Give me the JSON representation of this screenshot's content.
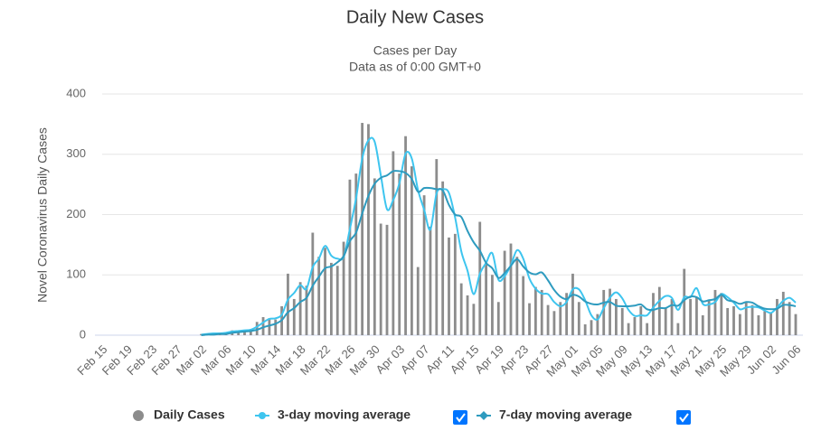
{
  "chart_data": {
    "type": "bar",
    "title": "Daily New Cases",
    "subtitle": [
      "Cases per Day",
      "Data as of 0:00 GMT+0"
    ],
    "y_label": "Novel Coronavirus Daily Cases",
    "categories": [
      "Feb 15",
      null,
      null,
      null,
      "Feb 19",
      null,
      null,
      null,
      "Feb 23",
      null,
      null,
      null,
      "Feb 27",
      null,
      null,
      null,
      "Mar 02",
      null,
      null,
      null,
      "Mar 06",
      null,
      null,
      null,
      "Mar 10",
      null,
      null,
      null,
      "Mar 14",
      null,
      null,
      null,
      "Mar 18",
      null,
      null,
      null,
      "Mar 22",
      null,
      null,
      null,
      "Mar 26",
      null,
      null,
      null,
      "Mar 30",
      null,
      null,
      null,
      "Apr 03",
      null,
      null,
      null,
      "Apr 07",
      null,
      null,
      null,
      "Apr 11",
      null,
      null,
      null,
      "Apr 15",
      null,
      null,
      null,
      "Apr 19",
      null,
      null,
      null,
      "Apr 23",
      null,
      null,
      null,
      "Apr 27",
      null,
      null,
      null,
      "May 01",
      null,
      null,
      null,
      "May 05",
      null,
      null,
      null,
      "May 09",
      null,
      null,
      null,
      "May 13",
      null,
      null,
      null,
      "May 17",
      null,
      null,
      null,
      "May 21",
      null,
      null,
      null,
      "May 25",
      null,
      null,
      null,
      "May 29",
      null,
      null,
      null,
      "Jun 02",
      null,
      null,
      null,
      "Jun 06"
    ],
    "series": [
      {
        "name": "Daily Cases",
        "type": "bar",
        "color": "#8c8c8c",
        "values": [
          0,
          0,
          0,
          0,
          0,
          0,
          0,
          0,
          0,
          0,
          0,
          0,
          0,
          0,
          0,
          0,
          2,
          3,
          3,
          4,
          5,
          8,
          8,
          9,
          10,
          22,
          30,
          28,
          26,
          48,
          102,
          60,
          88,
          82,
          170,
          130,
          145,
          120,
          115,
          155,
          258,
          268,
          352,
          350,
          260,
          185,
          183,
          305,
          268,
          330,
          280,
          113,
          232,
          180,
          292,
          255,
          162,
          168,
          86,
          66,
          52,
          188,
          120,
          100,
          55,
          140,
          152,
          130,
          98,
          53,
          80,
          75,
          50,
          40,
          55,
          70,
          102,
          55,
          18,
          25,
          35,
          75,
          77,
          60,
          45,
          20,
          30,
          48,
          20,
          70,
          80,
          45,
          60,
          20,
          110,
          60,
          63,
          33,
          58,
          75,
          70,
          45,
          48,
          35,
          55,
          50,
          33,
          40,
          38,
          60,
          72,
          55,
          35
        ]
      },
      {
        "name": "3-day moving average",
        "type": "line",
        "color": "#3ec5ef",
        "values": [
          null,
          null,
          null,
          null,
          null,
          null,
          null,
          null,
          null,
          null,
          null,
          null,
          null,
          null,
          null,
          null,
          1,
          2,
          3,
          3,
          4,
          6,
          7,
          8,
          9,
          14,
          21,
          27,
          28,
          34,
          59,
          70,
          83,
          77,
          113,
          127,
          148,
          132,
          127,
          130,
          176,
          227,
          293,
          323,
          321,
          265,
          209,
          224,
          252,
          301,
          293,
          241,
          208,
          175,
          235,
          242,
          236,
          195,
          139,
          107,
          68,
          102,
          120,
          136,
          92,
          98,
          116,
          141,
          127,
          94,
          77,
          69,
          68,
          55,
          48,
          55,
          76,
          76,
          58,
          33,
          26,
          45,
          62,
          71,
          61,
          42,
          32,
          33,
          33,
          46,
          57,
          65,
          62,
          42,
          63,
          63,
          78,
          52,
          51,
          55,
          68,
          63,
          54,
          43,
          46,
          47,
          46,
          41,
          37,
          46,
          57,
          62,
          54
        ]
      },
      {
        "name": "7-day moving average",
        "type": "line",
        "color": "#2e9bbf",
        "values": [
          null,
          null,
          null,
          null,
          null,
          null,
          null,
          null,
          null,
          null,
          null,
          null,
          null,
          null,
          null,
          null,
          0,
          1,
          1,
          2,
          2,
          4,
          5,
          6,
          7,
          9,
          13,
          16,
          19,
          25,
          38,
          45,
          55,
          62,
          82,
          97,
          111,
          114,
          121,
          131,
          156,
          170,
          202,
          231,
          251,
          261,
          265,
          272,
          272,
          269,
          259,
          238,
          244,
          244,
          242,
          240,
          216,
          200,
          196,
          173,
          154,
          140,
          120,
          111,
          95,
          103,
          115,
          126,
          114,
          104,
          101,
          104,
          91,
          75,
          64,
          60,
          67,
          64,
          56,
          52,
          51,
          54,
          55,
          49,
          48,
          48,
          49,
          51,
          43,
          42,
          45,
          45,
          50,
          49,
          58,
          64,
          63,
          56,
          58,
          60,
          67,
          58,
          56,
          52,
          55,
          54,
          48,
          44,
          43,
          44,
          50,
          50,
          48
        ]
      }
    ],
    "ylim": [
      0,
      400
    ],
    "yticks": [
      0,
      100,
      200,
      300,
      400
    ],
    "grid": true,
    "legend": "bottom"
  }
}
